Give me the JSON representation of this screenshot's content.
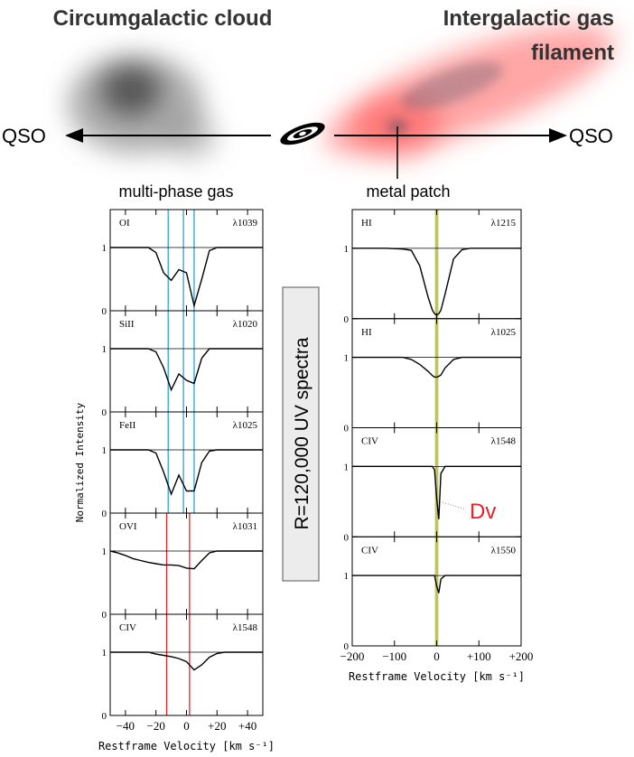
{
  "diagram": {
    "title_left": "Circumgalactic cloud",
    "title_right": [
      "Intergalactic gas",
      "filament"
    ],
    "qso_left": "QSO",
    "qso_right": "QSO",
    "label_left": "multi-phase gas",
    "label_right": "metal patch",
    "resolution": "R=120,000 UV spectra",
    "offset_label": "Dv"
  },
  "chart_data": [
    {
      "type": "line",
      "ylabel": "Normalized Intensity",
      "xlabel": "Restframe Velocity [km s⁻¹]",
      "xlim": [
        -50,
        50
      ],
      "xticks": [
        {
          "value": -40,
          "label": "−40"
        },
        {
          "value": -20,
          "label": "−20"
        },
        0,
        {
          "value": 20,
          "label": "+20"
        },
        {
          "value": 40,
          "label": "+40"
        }
      ],
      "ylim": [
        0,
        1.6
      ],
      "yticks": [
        0,
        1
      ],
      "continuum": 1,
      "color": "#000000",
      "x": [
        -50,
        -45,
        -40,
        -35,
        -30,
        -25,
        -20,
        -15,
        -10,
        -5,
        0,
        5,
        10,
        15,
        20,
        25,
        30,
        35,
        40,
        45,
        50
      ],
      "series": [
        {
          "name": "OI",
          "line": "λ1039",
          "vlines": [
            -12,
            -2,
            5
          ],
          "vline_color": "#29a3dc",
          "values": [
            1,
            1,
            1,
            1,
            1,
            1,
            0.92,
            0.6,
            0.48,
            0.65,
            0.6,
            0.08,
            0.5,
            0.95,
            1,
            1,
            1,
            1,
            1,
            1,
            1
          ]
        },
        {
          "name": "SiII",
          "line": "λ1020",
          "vlines": [
            -12,
            -2,
            5
          ],
          "vline_color": "#29a3dc",
          "values": [
            1,
            1,
            1,
            1,
            1,
            1,
            0.95,
            0.7,
            0.35,
            0.6,
            0.5,
            0.45,
            0.85,
            1,
            1,
            1,
            1,
            1,
            1,
            1,
            1
          ]
        },
        {
          "name": "FeII",
          "line": "λ1025",
          "vlines": [
            -12,
            -2,
            5
          ],
          "vline_color": "#29a3dc",
          "values": [
            1,
            1,
            1,
            1,
            1,
            1,
            0.95,
            0.65,
            0.3,
            0.6,
            0.35,
            0.35,
            0.8,
            0.98,
            1,
            1,
            1,
            1,
            1,
            1,
            1
          ]
        },
        {
          "name": "OVI",
          "line": "λ1031",
          "vlines": [
            -13,
            2
          ],
          "vline_color": "#e0242b",
          "values": [
            1,
            0.97,
            0.93,
            0.88,
            0.85,
            0.82,
            0.8,
            0.78,
            0.78,
            0.77,
            0.73,
            0.72,
            0.85,
            0.97,
            1,
            1,
            1,
            1,
            1,
            1,
            1
          ]
        },
        {
          "name": "CIV",
          "line": "λ1548",
          "vlines": [
            -13,
            2
          ],
          "vline_color": "#e0242b",
          "values": [
            1,
            1,
            1,
            1,
            1,
            1,
            0.97,
            0.95,
            0.93,
            0.9,
            0.85,
            0.72,
            0.8,
            0.92,
            0.98,
            1,
            1,
            1,
            1,
            1,
            1
          ]
        }
      ]
    },
    {
      "type": "line",
      "xlabel": "Restframe Velocity [km s⁻¹]",
      "xlim": [
        -200,
        200
      ],
      "xticks": [
        {
          "value": -200,
          "label": "−200"
        },
        {
          "value": -100,
          "label": "−100"
        },
        0,
        {
          "value": 100,
          "label": "+100"
        },
        {
          "value": 200,
          "label": "+200"
        }
      ],
      "ylim": [
        0,
        1.55
      ],
      "yticks": [
        0,
        1
      ],
      "continuum": 1,
      "color": "#000000",
      "band": [
        -4,
        4
      ],
      "band_color": "#b5b84a",
      "x": [
        -200,
        -160,
        -120,
        -80,
        -60,
        -40,
        -20,
        -10,
        -5,
        0,
        5,
        10,
        20,
        40,
        60,
        80,
        120,
        160,
        200
      ],
      "series": [
        {
          "name": "HI",
          "line": "λ1215",
          "values": [
            1,
            1,
            1,
            0.99,
            0.97,
            0.75,
            0.3,
            0.12,
            0.07,
            0.05,
            0.07,
            0.12,
            0.35,
            0.85,
            0.98,
            1,
            1,
            1,
            1
          ]
        },
        {
          "name": "HI",
          "line": "λ1025",
          "values": [
            1,
            1,
            1,
            1,
            0.97,
            0.9,
            0.8,
            0.74,
            0.72,
            0.72,
            0.73,
            0.75,
            0.85,
            0.97,
            1,
            1,
            1,
            1,
            1
          ]
        },
        {
          "name": "CIV",
          "line": "λ1548",
          "values": [
            1,
            1,
            1,
            1,
            1,
            1,
            1,
            1,
            0.95,
            0.55,
            0.25,
            0.9,
            1,
            1,
            1,
            1,
            1,
            1,
            1
          ]
        },
        {
          "name": "CIV",
          "line": "λ1550",
          "values": [
            1,
            1,
            1,
            1,
            1,
            1,
            1,
            1,
            1,
            0.85,
            0.75,
            0.95,
            1,
            1,
            1,
            1,
            1,
            1,
            1
          ]
        }
      ]
    }
  ]
}
